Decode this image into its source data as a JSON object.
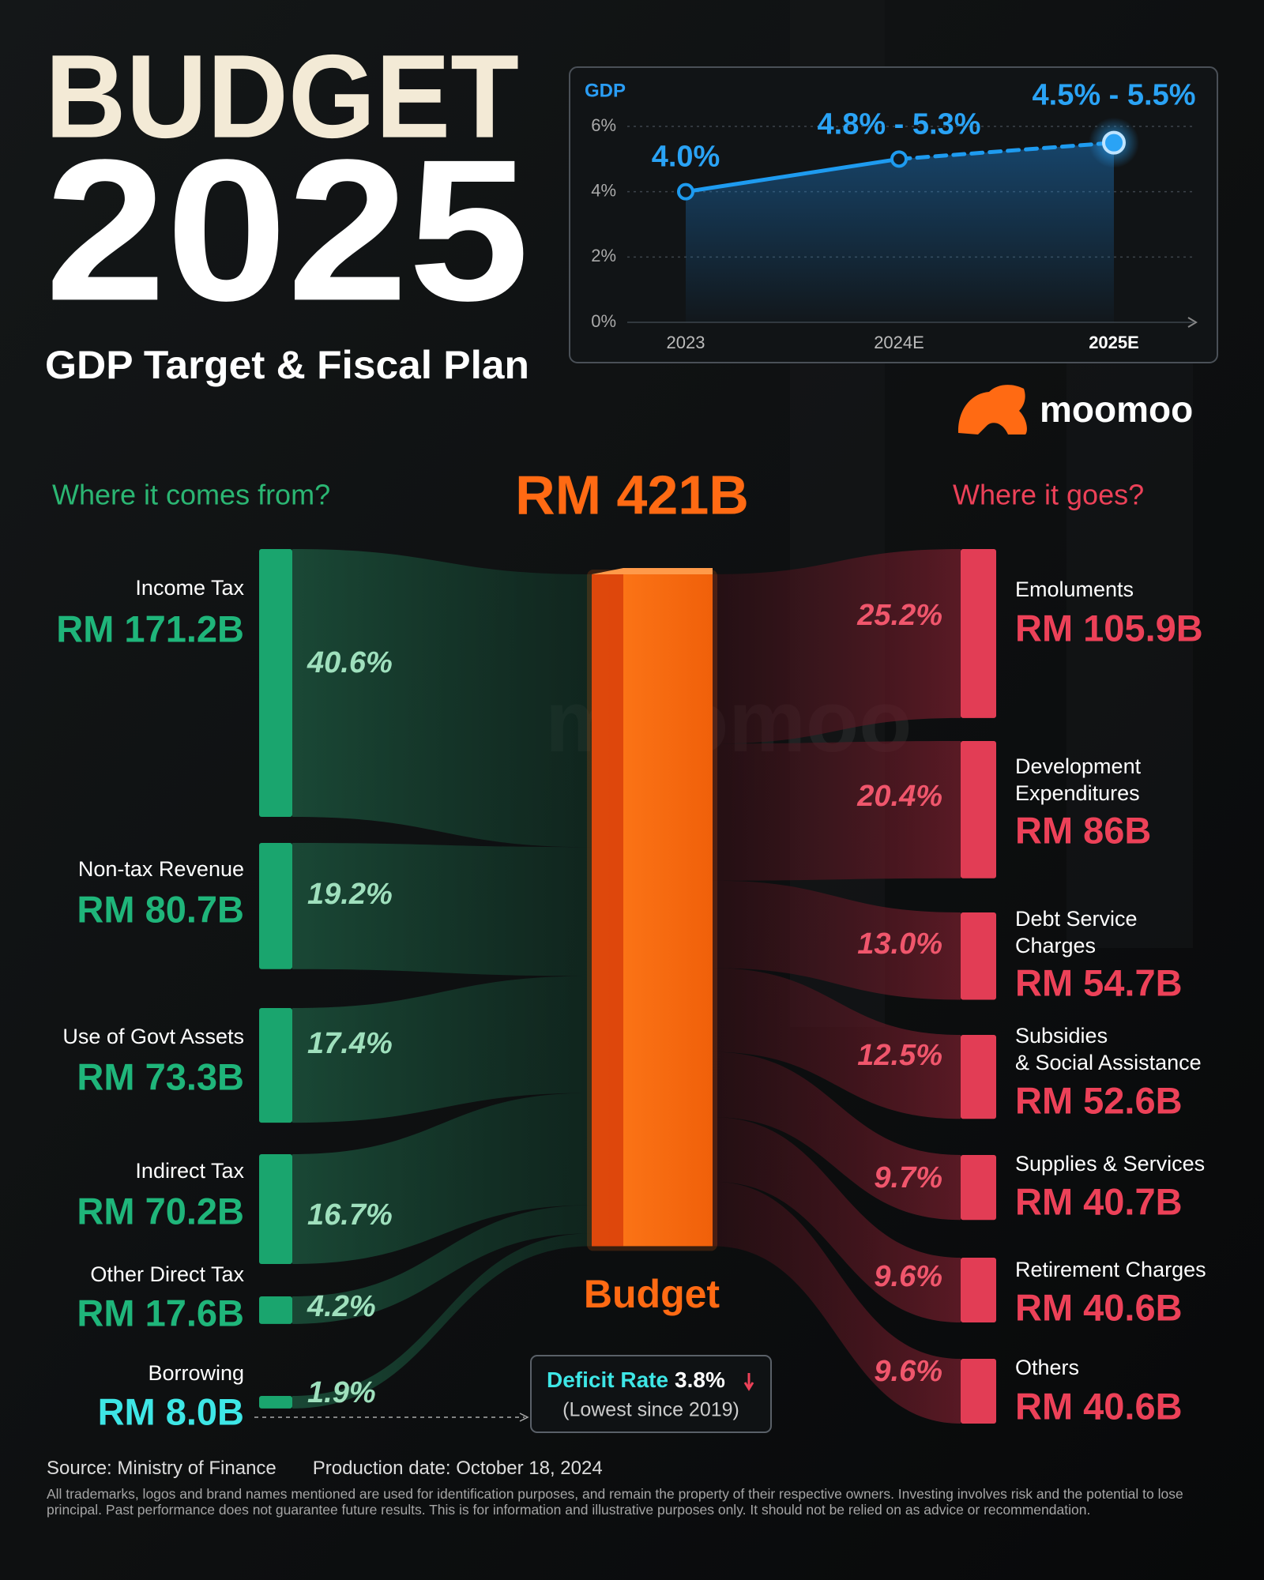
{
  "header": {
    "line1": "BUDGET",
    "line2": "2025",
    "subtitle": "GDP Target & Fiscal Plan"
  },
  "brand": "moomoo",
  "chart_data": [
    {
      "type": "line",
      "title": "GDP",
      "categories": [
        "2023",
        "2024E",
        "2025E"
      ],
      "values": [
        4.0,
        5.0,
        5.5
      ],
      "point_labels": [
        "4.0%",
        "4.8% - 5.3%",
        "4.5% - 5.5%"
      ],
      "color": "#1e9bf0",
      "ylim": [
        0,
        6
      ],
      "yticks": [
        {
          "value": 0,
          "label": "0%"
        },
        {
          "value": 2,
          "label": "2%"
        },
        {
          "value": 4,
          "label": "4%"
        },
        {
          "value": 6,
          "label": "6%"
        }
      ],
      "grid": true
    },
    {
      "type": "sankey",
      "total": 421,
      "total_label": "RM 421B",
      "center_label": "Budget",
      "left_title": "Where it comes from?",
      "right_title": "Where it goes?",
      "source_color": "#1aa56e",
      "target_color": "#e23d55",
      "center_color": "#ff6b0f",
      "sources": [
        {
          "name": [
            "Income Tax"
          ],
          "value": 171.2,
          "value_label": "RM 171.2B",
          "share": 40.6,
          "share_label": "40.6%"
        },
        {
          "name": [
            "Non-tax Revenue"
          ],
          "value": 80.7,
          "value_label": "RM 80.7B",
          "share": 19.2,
          "share_label": "19.2%"
        },
        {
          "name": [
            "Use of Govt Assets"
          ],
          "value": 73.3,
          "value_label": "RM 73.3B",
          "share": 17.4,
          "share_label": "17.4%"
        },
        {
          "name": [
            "Indirect Tax"
          ],
          "value": 70.2,
          "value_label": "RM 70.2B",
          "share": 16.7,
          "share_label": "16.7%"
        },
        {
          "name": [
            "Other Direct Tax"
          ],
          "value": 17.6,
          "value_label": "RM 17.6B",
          "share": 4.2,
          "share_label": "4.2%"
        },
        {
          "name": [
            "Borrowing"
          ],
          "value": 8.0,
          "value_label": "RM 8.0B",
          "share": 1.9,
          "share_label": "1.9%"
        }
      ],
      "targets": [
        {
          "name": [
            "Emoluments"
          ],
          "value": 105.9,
          "value_label": "RM 105.9B",
          "share": 25.2,
          "share_label": "25.2%"
        },
        {
          "name": [
            "Development",
            "Expenditures"
          ],
          "value": 86,
          "value_label": "RM 86B",
          "share": 20.4,
          "share_label": "20.4%"
        },
        {
          "name": [
            "Debt Service",
            "Charges"
          ],
          "value": 54.7,
          "value_label": "RM 54.7B",
          "share": 13.0,
          "share_label": "13.0%"
        },
        {
          "name": [
            "Subsidies",
            "& Social Assistance"
          ],
          "value": 52.6,
          "value_label": "RM 52.6B",
          "share": 12.5,
          "share_label": "12.5%"
        },
        {
          "name": [
            "Supplies & Services"
          ],
          "value": 40.7,
          "value_label": "RM 40.7B",
          "share": 9.7,
          "share_label": "9.7%"
        },
        {
          "name": [
            "Retirement Charges"
          ],
          "value": 40.6,
          "value_label": "RM 40.6B",
          "share": 9.6,
          "share_label": "9.6%"
        },
        {
          "name": [
            "Others"
          ],
          "value": 40.6,
          "value_label": "RM 40.6B",
          "share": 9.6,
          "share_label": "9.6%"
        }
      ]
    }
  ],
  "deficit": {
    "label": "Deficit Rate",
    "value_label": "3.8%",
    "note": "(Lowest since 2019)"
  },
  "footer": {
    "source": "Source: Ministry of Finance",
    "date": "Production date: October 18, 2024",
    "disclaimer": "All trademarks, logos and brand names mentioned are used for identification purposes, and remain the property of their respective owners. Investing involves risk and the potential to lose principal. Past performance does not guarantee future results. This is for information and illustrative purposes only. It should not be relied on as advice or recommendation."
  }
}
